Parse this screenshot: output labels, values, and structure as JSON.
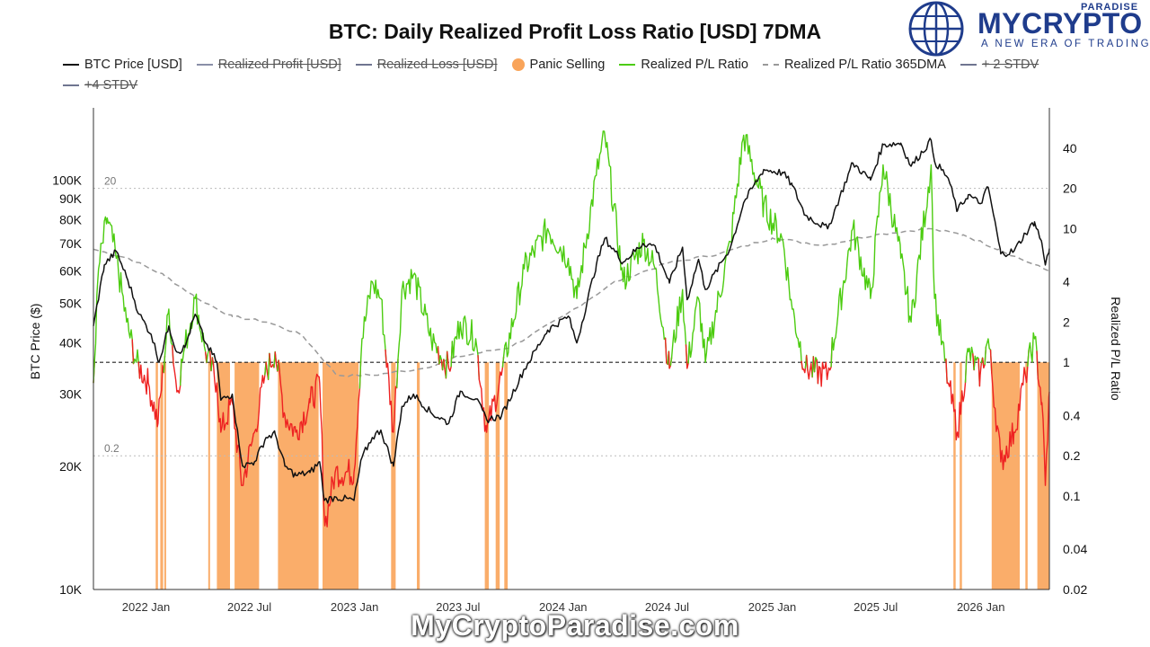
{
  "branding": {
    "name": "MYCRYPTO",
    "name_super": "PARADISE",
    "tagline": "A NEW ERA OF TRADING",
    "watermark": "MyCryptoParadise.com",
    "brand_color": "#1f3c8c"
  },
  "chart_data": {
    "type": "line",
    "title": "BTC: Daily Realized Profit Loss Ratio [USD] 7DMA",
    "legend_placement": "top-left",
    "legend": [
      {
        "label": "BTC Price [USD]",
        "color": "#111111",
        "style": "line",
        "struck": false
      },
      {
        "label": "Realized Profit [USD]",
        "color": "#8a8fa8",
        "style": "line",
        "struck": true
      },
      {
        "label": "Realized Loss [USD]",
        "color": "#6f7590",
        "style": "line",
        "struck": true
      },
      {
        "label": "Panic Selling",
        "color": "#f9a45a",
        "style": "dot",
        "struck": false
      },
      {
        "label": "Realized P/L Ratio",
        "color": "#4ccc10",
        "style": "line",
        "struck": false
      },
      {
        "label": "Realized P/L Ratio 365DMA",
        "color": "#999999",
        "style": "dashed",
        "struck": false
      },
      {
        "label": "+ 2 STDV",
        "color": "#6f7590",
        "style": "line",
        "struck": true
      },
      {
        "label": "+4 STDV",
        "color": "#6f7590",
        "style": "line",
        "struck": true
      }
    ],
    "x_axis": {
      "start": "2021-10-01",
      "end": "2026-05-01",
      "ticks": [
        {
          "date": "2022-01-01",
          "label": "2022 Jan"
        },
        {
          "date": "2022-07-01",
          "label": "2022 Jul"
        },
        {
          "date": "2023-01-01",
          "label": "2023 Jan"
        },
        {
          "date": "2023-07-01",
          "label": "2023 Jul"
        },
        {
          "date": "2024-01-01",
          "label": "2024 Jan"
        },
        {
          "date": "2024-07-01",
          "label": "2024 Jul"
        },
        {
          "date": "2025-01-01",
          "label": "2025 Jan"
        },
        {
          "date": "2025-07-01",
          "label": "2025 Jul"
        },
        {
          "date": "2026-01-01",
          "label": "2026 Jan"
        }
      ]
    },
    "y_left": {
      "label": "BTC Price ($)",
      "scale": "log",
      "range": [
        10000,
        150000
      ],
      "ticks": [
        {
          "value": 10000,
          "label": "10K"
        },
        {
          "value": 20000,
          "label": "20K"
        },
        {
          "value": 30000,
          "label": "30K"
        },
        {
          "value": 40000,
          "label": "40K"
        },
        {
          "value": 50000,
          "label": "50K"
        },
        {
          "value": 60000,
          "label": "60K"
        },
        {
          "value": 70000,
          "label": "70K"
        },
        {
          "value": 80000,
          "label": "80K"
        },
        {
          "value": 90000,
          "label": "90K"
        },
        {
          "value": 100000,
          "label": "100K"
        }
      ]
    },
    "y_right": {
      "label": "Realized P/L Ratio",
      "scale": "log",
      "range": [
        0.02,
        80
      ],
      "ticks": [
        {
          "value": 0.02,
          "label": "0.02"
        },
        {
          "value": 0.04,
          "label": "0.04"
        },
        {
          "value": 0.1,
          "label": "0.1"
        },
        {
          "value": 0.2,
          "label": "0.2"
        },
        {
          "value": 0.4,
          "label": "0.4"
        },
        {
          "value": 1,
          "label": "1"
        },
        {
          "value": 2,
          "label": "2"
        },
        {
          "value": 4,
          "label": "4"
        },
        {
          "value": 10,
          "label": "10"
        },
        {
          "value": 20,
          "label": "20"
        },
        {
          "value": 40,
          "label": "40"
        }
      ]
    },
    "reference_lines": [
      {
        "value": 20,
        "label": "20",
        "style": "dotted"
      },
      {
        "value": 1,
        "label": "",
        "style": "dashed-dark"
      },
      {
        "value": 0.2,
        "label": "0.2",
        "style": "dotted"
      }
    ],
    "colors": {
      "price": "#111111",
      "ratio_above_1": "#4ccc10",
      "ratio_below_1": "#ee2222",
      "ratio_365dma": "#999999",
      "panic": "#f9a45a",
      "grid_ref": "#bbbbbb"
    },
    "series": [
      {
        "name": "BTC Price [USD]",
        "axis": "left",
        "points": [
          [
            "2021-10-01",
            44000
          ],
          [
            "2021-10-20",
            62000
          ],
          [
            "2021-11-10",
            67000
          ],
          [
            "2021-11-30",
            57000
          ],
          [
            "2021-12-20",
            47000
          ],
          [
            "2022-01-10",
            42000
          ],
          [
            "2022-01-24",
            36000
          ],
          [
            "2022-02-10",
            44000
          ],
          [
            "2022-02-24",
            38000
          ],
          [
            "2022-03-10",
            39000
          ],
          [
            "2022-03-28",
            47000
          ],
          [
            "2022-04-15",
            40000
          ],
          [
            "2022-05-05",
            36000
          ],
          [
            "2022-05-12",
            29000
          ],
          [
            "2022-06-01",
            30000
          ],
          [
            "2022-06-13",
            22500
          ],
          [
            "2022-06-20",
            20000
          ],
          [
            "2022-07-10",
            20500
          ],
          [
            "2022-07-30",
            23500
          ],
          [
            "2022-08-15",
            24000
          ],
          [
            "2022-09-01",
            20000
          ],
          [
            "2022-09-20",
            19000
          ],
          [
            "2022-10-15",
            19300
          ],
          [
            "2022-11-01",
            20500
          ],
          [
            "2022-11-09",
            16500
          ],
          [
            "2022-11-30",
            16800
          ],
          [
            "2022-12-31",
            16500
          ],
          [
            "2023-01-14",
            21000
          ],
          [
            "2023-02-01",
            23500
          ],
          [
            "2023-02-16",
            24500
          ],
          [
            "2023-03-10",
            20000
          ],
          [
            "2023-03-25",
            28000
          ],
          [
            "2023-04-14",
            30000
          ],
          [
            "2023-05-15",
            27000
          ],
          [
            "2023-06-15",
            25500
          ],
          [
            "2023-07-05",
            30500
          ],
          [
            "2023-08-01",
            29200
          ],
          [
            "2023-08-20",
            26000
          ],
          [
            "2023-09-15",
            26500
          ],
          [
            "2023-10-25",
            34500
          ],
          [
            "2023-12-05",
            43000
          ],
          [
            "2024-01-10",
            46500
          ],
          [
            "2024-01-25",
            40000
          ],
          [
            "2024-02-28",
            62000
          ],
          [
            "2024-03-14",
            72000
          ],
          [
            "2024-04-15",
            63000
          ],
          [
            "2024-05-20",
            70000
          ],
          [
            "2024-06-10",
            69000
          ],
          [
            "2024-07-05",
            56000
          ],
          [
            "2024-07-28",
            68500
          ],
          [
            "2024-08-05",
            51000
          ],
          [
            "2024-08-25",
            64000
          ],
          [
            "2024-09-06",
            54000
          ],
          [
            "2024-10-20",
            68500
          ],
          [
            "2024-11-12",
            88000
          ],
          [
            "2024-12-17",
            106000
          ],
          [
            "2025-01-20",
            104000
          ],
          [
            "2025-02-05",
            97000
          ],
          [
            "2025-02-28",
            82000
          ],
          [
            "2025-04-08",
            76000
          ],
          [
            "2025-05-22",
            110000
          ],
          [
            "2025-06-22",
            100000
          ],
          [
            "2025-07-14",
            122000
          ],
          [
            "2025-08-14",
            123000
          ],
          [
            "2025-09-01",
            108000
          ],
          [
            "2025-10-06",
            125000
          ],
          [
            "2025-10-12",
            111000
          ],
          [
            "2025-11-05",
            101000
          ],
          [
            "2025-11-21",
            84000
          ],
          [
            "2025-12-10",
            92000
          ],
          [
            "2025-12-31",
            87500
          ],
          [
            "2026-01-14",
            96000
          ],
          [
            "2026-02-05",
            66000
          ],
          [
            "2026-02-28",
            67000
          ],
          [
            "2026-03-20",
            74000
          ],
          [
            "2026-04-05",
            79000
          ],
          [
            "2026-04-18",
            70000
          ],
          [
            "2026-04-24",
            62000
          ],
          [
            "2026-05-01",
            68000
          ]
        ]
      },
      {
        "name": "Realized P/L Ratio",
        "axis": "right",
        "points": [
          [
            "2021-10-01",
            0.7
          ],
          [
            "2021-10-10",
            5
          ],
          [
            "2021-10-25",
            12
          ],
          [
            "2021-11-10",
            6
          ],
          [
            "2021-11-28",
            2
          ],
          [
            "2021-12-15",
            1
          ],
          [
            "2022-01-05",
            0.7
          ],
          [
            "2022-01-22",
            0.35
          ],
          [
            "2022-02-10",
            2.5
          ],
          [
            "2022-02-24",
            0.6
          ],
          [
            "2022-03-10",
            1.3
          ],
          [
            "2022-03-28",
            3
          ],
          [
            "2022-04-15",
            1.2
          ],
          [
            "2022-05-05",
            0.7
          ],
          [
            "2022-05-12",
            0.3
          ],
          [
            "2022-06-01",
            0.5
          ],
          [
            "2022-06-18",
            0.12
          ],
          [
            "2022-07-10",
            0.3
          ],
          [
            "2022-07-28",
            0.8
          ],
          [
            "2022-08-15",
            1.2
          ],
          [
            "2022-09-01",
            0.4
          ],
          [
            "2022-09-20",
            0.3
          ],
          [
            "2022-10-15",
            0.5
          ],
          [
            "2022-11-01",
            0.7
          ],
          [
            "2022-11-10",
            0.06
          ],
          [
            "2022-11-28",
            0.15
          ],
          [
            "2022-12-31",
            0.15
          ],
          [
            "2023-01-14",
            1.5
          ],
          [
            "2023-02-01",
            4
          ],
          [
            "2023-02-16",
            3
          ],
          [
            "2023-03-10",
            0.3
          ],
          [
            "2023-03-25",
            3.5
          ],
          [
            "2023-04-14",
            4.5
          ],
          [
            "2023-05-15",
            1.5
          ],
          [
            "2023-06-15",
            0.9
          ],
          [
            "2023-07-05",
            2
          ],
          [
            "2023-08-01",
            1.5
          ],
          [
            "2023-08-20",
            0.3
          ],
          [
            "2023-09-15",
            0.8
          ],
          [
            "2023-10-25",
            5
          ],
          [
            "2023-12-05",
            10
          ],
          [
            "2024-01-10",
            6
          ],
          [
            "2024-01-25",
            3
          ],
          [
            "2024-02-28",
            25
          ],
          [
            "2024-03-14",
            50
          ],
          [
            "2024-04-15",
            4
          ],
          [
            "2024-05-20",
            8
          ],
          [
            "2024-06-10",
            5
          ],
          [
            "2024-07-05",
            0.9
          ],
          [
            "2024-07-28",
            3.5
          ],
          [
            "2024-08-05",
            0.9
          ],
          [
            "2024-08-25",
            3
          ],
          [
            "2024-09-06",
            1
          ],
          [
            "2024-10-20",
            8
          ],
          [
            "2024-11-12",
            50
          ],
          [
            "2024-12-17",
            15
          ],
          [
            "2025-01-20",
            8
          ],
          [
            "2025-02-05",
            2.5
          ],
          [
            "2025-02-28",
            0.9
          ],
          [
            "2025-04-08",
            0.8
          ],
          [
            "2025-05-22",
            10
          ],
          [
            "2025-06-22",
            3
          ],
          [
            "2025-07-14",
            30
          ],
          [
            "2025-08-14",
            6
          ],
          [
            "2025-09-01",
            2
          ],
          [
            "2025-10-06",
            30
          ],
          [
            "2025-10-12",
            3
          ],
          [
            "2025-11-05",
            0.7
          ],
          [
            "2025-11-21",
            0.3
          ],
          [
            "2025-12-10",
            1.2
          ],
          [
            "2025-12-31",
            0.8
          ],
          [
            "2026-01-14",
            1.5
          ],
          [
            "2026-02-05",
            0.18
          ],
          [
            "2026-02-28",
            0.3
          ],
          [
            "2026-03-20",
            0.8
          ],
          [
            "2026-04-05",
            1.5
          ],
          [
            "2026-04-18",
            0.5
          ],
          [
            "2026-04-24",
            0.12
          ],
          [
            "2026-05-01",
            0.6
          ]
        ]
      },
      {
        "name": "Realized P/L Ratio 365DMA",
        "axis": "right",
        "points": [
          [
            "2021-10-01",
            7
          ],
          [
            "2021-12-01",
            6
          ],
          [
            "2022-02-01",
            4.5
          ],
          [
            "2022-04-01",
            3
          ],
          [
            "2022-06-01",
            2.2
          ],
          [
            "2022-08-01",
            2.0
          ],
          [
            "2022-10-01",
            1.6
          ],
          [
            "2022-12-01",
            0.8
          ],
          [
            "2023-02-01",
            0.8
          ],
          [
            "2023-05-01",
            0.9
          ],
          [
            "2023-07-01",
            1.1
          ],
          [
            "2023-10-01",
            1.3
          ],
          [
            "2024-01-01",
            2.2
          ],
          [
            "2024-04-01",
            4.0
          ],
          [
            "2024-07-01",
            5.5
          ],
          [
            "2024-10-01",
            6.5
          ],
          [
            "2025-01-01",
            8.5
          ],
          [
            "2025-04-01",
            7.5
          ],
          [
            "2025-07-01",
            9.0
          ],
          [
            "2025-10-01",
            10.0
          ],
          [
            "2025-12-01",
            9.0
          ],
          [
            "2026-02-01",
            7.0
          ],
          [
            "2026-05-01",
            4.8
          ]
        ]
      }
    ],
    "panic_selling_periods": [
      [
        "2022-01-18",
        "2022-01-22"
      ],
      [
        "2022-01-26",
        "2022-01-31"
      ],
      [
        "2022-02-02",
        "2022-02-05"
      ],
      [
        "2022-04-20",
        "2022-04-23"
      ],
      [
        "2022-05-05",
        "2022-05-28"
      ],
      [
        "2022-06-05",
        "2022-07-18"
      ],
      [
        "2022-08-20",
        "2022-10-30"
      ],
      [
        "2022-11-06",
        "2023-01-08"
      ],
      [
        "2023-03-06",
        "2023-03-14"
      ],
      [
        "2023-04-20",
        "2023-04-25"
      ],
      [
        "2023-08-17",
        "2023-08-24"
      ],
      [
        "2023-09-05",
        "2023-09-12"
      ],
      [
        "2023-09-20",
        "2023-09-26"
      ],
      [
        "2025-11-14",
        "2025-11-18"
      ],
      [
        "2025-11-25",
        "2025-11-29"
      ],
      [
        "2026-01-20",
        "2026-03-10"
      ],
      [
        "2026-03-20",
        "2026-03-24"
      ],
      [
        "2026-04-10",
        "2026-05-01"
      ]
    ]
  }
}
